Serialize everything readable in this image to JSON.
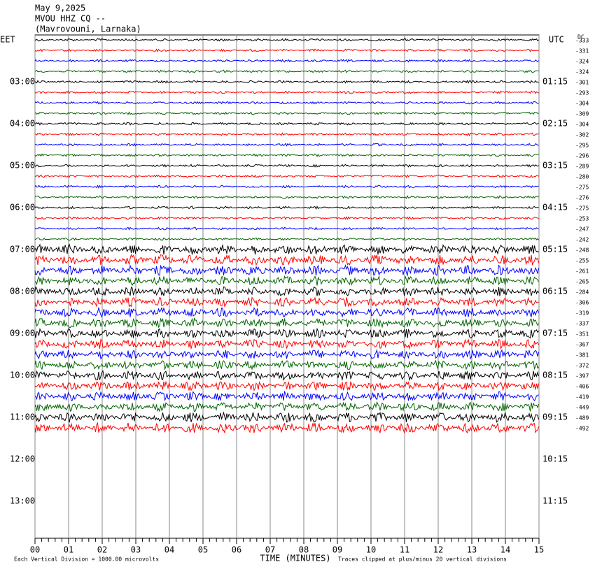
{
  "chart_data": {
    "type": "helicorder",
    "title_lines": [
      "May 9,2025",
      "MVOU HHZ CQ --",
      "(Mavrovouni, Larnaka)"
    ],
    "time_zone_left": "EET",
    "left_times": [
      "03:00",
      "04:00",
      "05:00",
      "06:00",
      "07:00",
      "08:00",
      "09:00",
      "10:00",
      "11:00",
      "12:00",
      "13:00"
    ],
    "time_zone_right": "UTC",
    "right_times": [
      "01:15",
      "02:15",
      "03:15",
      "04:15",
      "05:15",
      "06:15",
      "07:15",
      "08:15",
      "09:15",
      "10:15",
      "11:15"
    ],
    "dc_label": "DC",
    "dc_offsets": [
      -333,
      -331,
      -324,
      -324,
      -301,
      -293,
      -304,
      -309,
      -304,
      -302,
      -295,
      -296,
      -289,
      -280,
      -275,
      -276,
      -275,
      -253,
      -247,
      -242,
      -248,
      -255,
      -261,
      -265,
      -284,
      -306,
      -319,
      -337,
      -351,
      -367,
      -381,
      -372,
      -397,
      -406,
      -419,
      -449,
      -489,
      -492
    ],
    "trace_colors": [
      "#000000",
      "#ff0000",
      "#0000ff",
      "#006400"
    ],
    "xlim": [
      0,
      15
    ],
    "xticks": [
      {
        "value": 0,
        "label": "00"
      },
      {
        "value": 1,
        "label": "01"
      },
      {
        "value": 2,
        "label": "02"
      },
      {
        "value": 3,
        "label": "03"
      },
      {
        "value": 4,
        "label": "04"
      },
      {
        "value": 5,
        "label": "05"
      },
      {
        "value": 6,
        "label": "06"
      },
      {
        "value": 7,
        "label": "07"
      },
      {
        "value": 8,
        "label": "08"
      },
      {
        "value": 9,
        "label": "09"
      },
      10,
      11,
      12,
      13,
      14,
      15
    ],
    "xlabel": "TIME (MINUTES)",
    "scale_note": "Each Vertical Division = 1000.00 microvolts",
    "clip_note": "Traces clipped at plus/minus 20 vertical divisions"
  }
}
